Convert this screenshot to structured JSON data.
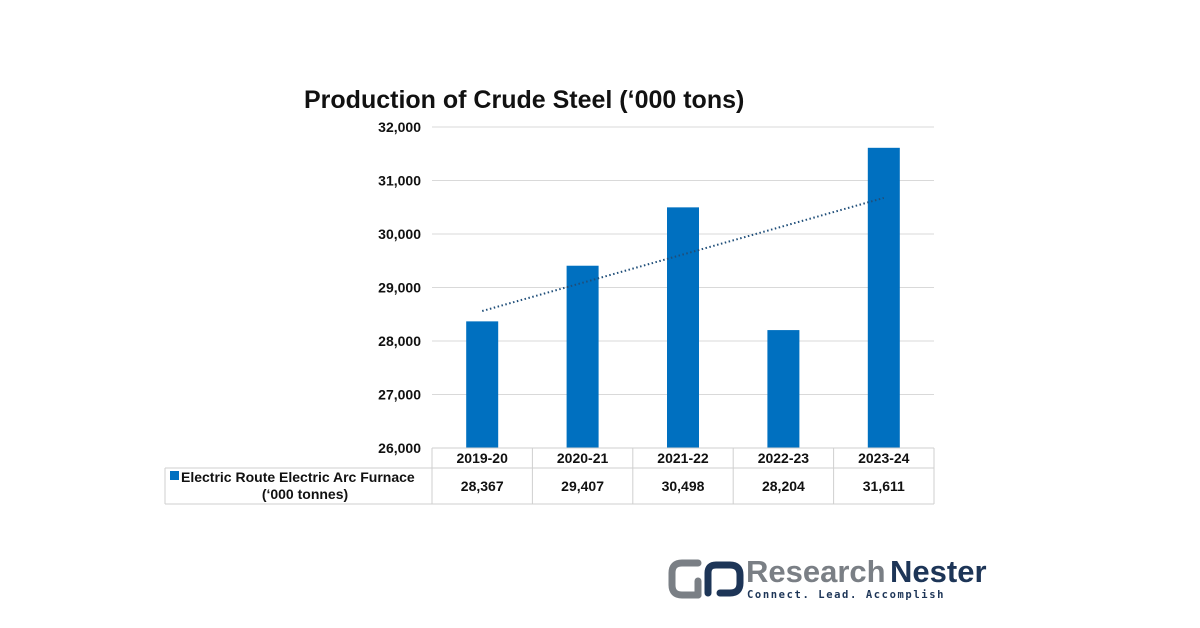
{
  "chart_data": {
    "type": "bar",
    "title": "Production of Crude Steel (‘000 tons)",
    "categories": [
      "2019-20",
      "2020-21",
      "2021-22",
      "2022-23",
      "2023-24"
    ],
    "series": [
      {
        "name": "Electric Route Electric Arc Furnace (‘000 tonnes)",
        "values": [
          28367,
          29407,
          30498,
          28204,
          31611
        ],
        "value_labels": [
          "28,367",
          "29,407",
          "30,498",
          "28,204",
          "31,611"
        ]
      }
    ],
    "yticks": [
      "26,000",
      "27,000",
      "28,000",
      "29,000",
      "30,000",
      "31,000",
      "32,000"
    ],
    "ylim": [
      26000,
      32000
    ],
    "trendline": "linear, dotted",
    "grid": true,
    "legend": "data-table",
    "bar_color": "#0070c0"
  },
  "legend": {
    "line1": "Electric Route Electric Arc Furnace",
    "line2": "(‘000 tonnes)"
  },
  "brand": {
    "word1": "Research",
    "word2": "Nester",
    "tagline": "Connect. Lead. Accomplish",
    "word1_color": "#7a7f85",
    "word2_color": "#1d3557",
    "tagline_color": "#1d3557"
  }
}
